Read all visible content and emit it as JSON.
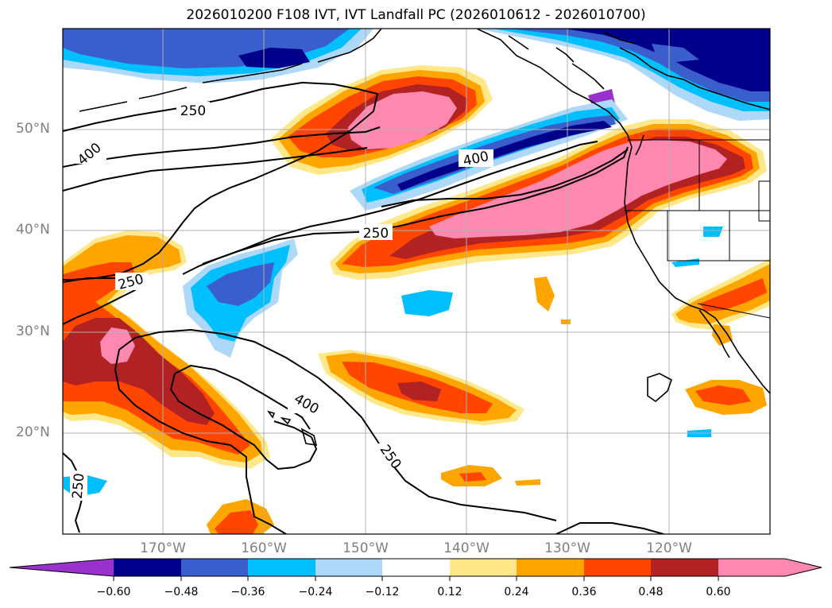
{
  "title": "2026010200 F108 IVT, IVT Landfall PC (2026010612 - 2026010700)",
  "lat_labels": [
    "50°N",
    "40°N",
    "30°N",
    "20°N"
  ],
  "lon_labels": [
    "170°W",
    "160°W",
    "150°W",
    "140°W",
    "130°W",
    "120°W"
  ],
  "contour_labels": [
    "250",
    "400",
    "400",
    "250",
    "250",
    "400",
    "250",
    "250"
  ],
  "colorbar": {
    "ticks": [
      "−0.60",
      "−0.48",
      "−0.36",
      "−0.24",
      "−0.12",
      "0.12",
      "0.24",
      "0.36",
      "0.48",
      "0.60"
    ],
    "colors": [
      "#9932cc",
      "#00008b",
      "#3a5fcd",
      "#00bfff",
      "#add8f8",
      "#ffffff",
      "#ffe88a",
      "#ffa500",
      "#ff4500",
      "#b22222",
      "#ff88b0"
    ],
    "extend": "both"
  },
  "chart_data": {
    "type": "heatmap",
    "title": "2026010200 F108 IVT, IVT Landfall PC (2026010612 - 2026010700)",
    "xlabel": "",
    "ylabel": "",
    "xlim": [
      180,
      110
    ],
    "ylim": [
      10,
      60
    ],
    "x_ticks": [
      "170°W",
      "160°W",
      "150°W",
      "140°W",
      "130°W",
      "120°W"
    ],
    "y_ticks": [
      "50°N",
      "40°N",
      "30°N",
      "20°N"
    ],
    "grid": true,
    "filled_field": "IVT Landfall PC",
    "contour_field": "IVT",
    "contour_levels": [
      250,
      400
    ],
    "colorbar_levels": [
      -0.6,
      -0.48,
      -0.36,
      -0.24,
      -0.12,
      0.12,
      0.24,
      0.36,
      0.48,
      0.6
    ]
  }
}
